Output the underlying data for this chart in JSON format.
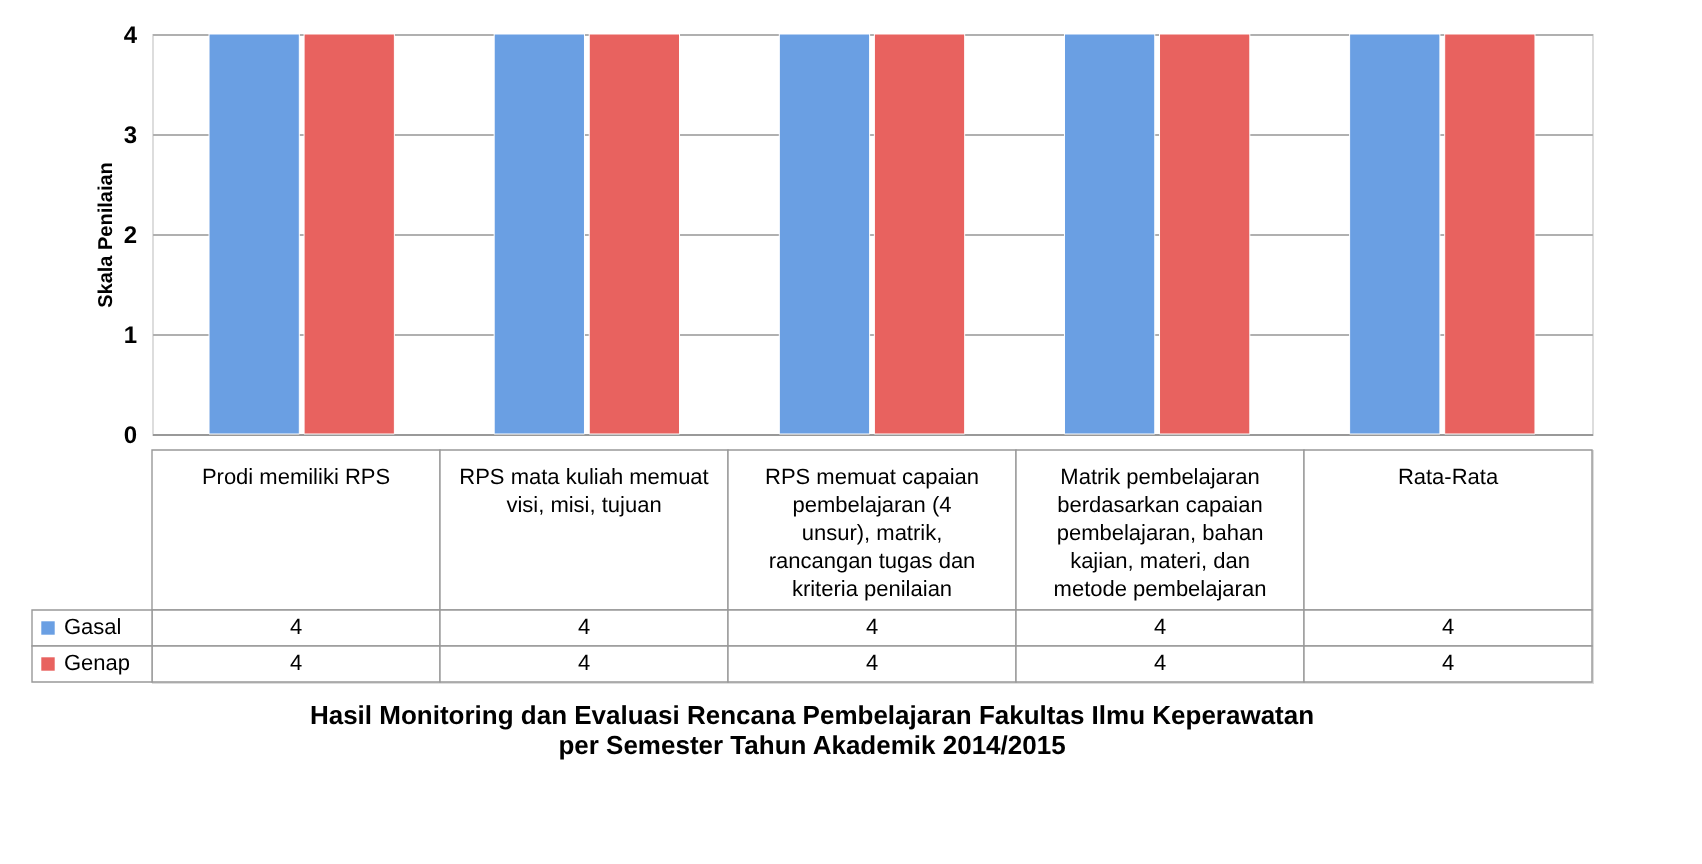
{
  "chart_data": {
    "type": "bar",
    "title": "Hasil Monitoring dan Evaluasi Rencana Pembelajaran Fakultas Ilmu Keperawatan\nper Semester Tahun Akademik 2014/2015",
    "ylabel": "Skala Penilaian",
    "categories": [
      "Prodi memiliki RPS",
      "RPS mata kuliah memuat visi, misi, tujuan",
      "RPS memuat capaian pembelajaran (4 unsur), matrik, rancangan tugas dan kriteria penilaian",
      "Matrik pembelajaran berdasarkan capaian pembelajaran, bahan kajian, materi, dan metode pembelajaran",
      "Rata-Rata"
    ],
    "series": [
      {
        "name": "Gasal",
        "color": "#6a9fe3",
        "values": [
          4,
          4,
          4,
          4,
          4
        ]
      },
      {
        "name": "Genap",
        "color": "#e8625f",
        "values": [
          4,
          4,
          4,
          4,
          4
        ]
      }
    ],
    "ylim": [
      0,
      4
    ],
    "yticks": [
      0,
      1,
      2,
      3,
      4
    ],
    "grid": "y",
    "legend": "bottom left",
    "data_labels": true
  }
}
